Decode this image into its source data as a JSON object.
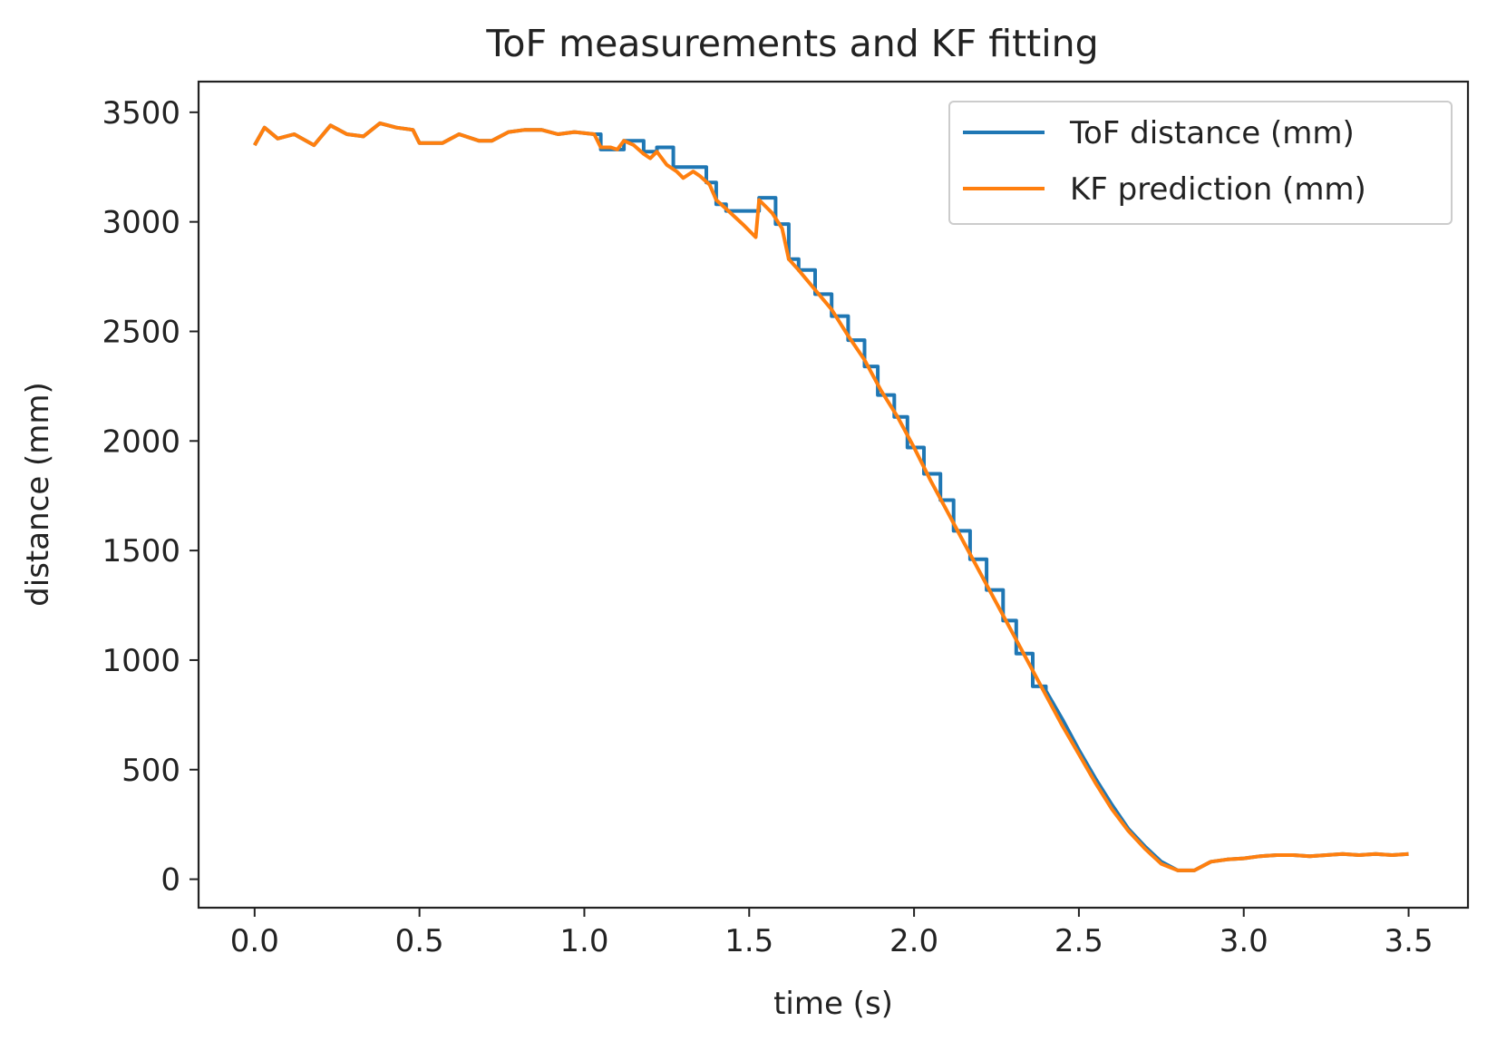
{
  "chart_data": {
    "type": "line",
    "title": "ToF measurements and KF fitting",
    "xlabel": "time (s)",
    "ylabel": "distance (mm)",
    "xlim": [
      -0.17,
      3.68
    ],
    "ylim": [
      -130,
      3640
    ],
    "xticks": [
      0.0,
      0.5,
      1.0,
      1.5,
      2.0,
      2.5,
      3.0,
      3.5
    ],
    "xtick_labels": [
      "0.0",
      "0.5",
      "1.0",
      "1.5",
      "2.0",
      "2.5",
      "3.0",
      "3.5"
    ],
    "yticks": [
      0,
      500,
      1000,
      1500,
      2000,
      2500,
      3000,
      3500
    ],
    "ytick_labels": [
      "0",
      "500",
      "1000",
      "1500",
      "2000",
      "2500",
      "3000",
      "3500"
    ],
    "grid": false,
    "legend_position": "top-right",
    "series": [
      {
        "name": "ToF distance (mm)",
        "color": "#1f77b4",
        "x": [
          0.0,
          0.03,
          0.07,
          0.12,
          0.18,
          0.23,
          0.28,
          0.33,
          0.38,
          0.43,
          0.48,
          0.5,
          0.53,
          0.57,
          0.62,
          0.68,
          0.72,
          0.77,
          0.82,
          0.87,
          0.92,
          0.97,
          1.03,
          1.05,
          1.05,
          1.08,
          1.1,
          1.12,
          1.12,
          1.18,
          1.18,
          1.22,
          1.22,
          1.27,
          1.27,
          1.37,
          1.37,
          1.4,
          1.4,
          1.43,
          1.43,
          1.48,
          1.48,
          1.53,
          1.53,
          1.58,
          1.58,
          1.62,
          1.62,
          1.65,
          1.65,
          1.7,
          1.7,
          1.75,
          1.75,
          1.8,
          1.8,
          1.85,
          1.85,
          1.89,
          1.89,
          1.94,
          1.94,
          1.98,
          1.98,
          2.03,
          2.03,
          2.08,
          2.08,
          2.12,
          2.12,
          2.17,
          2.17,
          2.22,
          2.22,
          2.27,
          2.27,
          2.31,
          2.31,
          2.36,
          2.36,
          2.4,
          2.4,
          2.45,
          2.5,
          2.55,
          2.6,
          2.65,
          2.7,
          2.75,
          2.8,
          2.85,
          2.9,
          2.95,
          3.0,
          3.05,
          3.1,
          3.15,
          3.2,
          3.25,
          3.3,
          3.35,
          3.4,
          3.45,
          3.5
        ],
        "y": [
          3350,
          3430,
          3380,
          3400,
          3350,
          3440,
          3400,
          3390,
          3450,
          3430,
          3420,
          3360,
          3360,
          3360,
          3400,
          3370,
          3370,
          3410,
          3420,
          3420,
          3400,
          3410,
          3400,
          3400,
          3330,
          3330,
          3330,
          3330,
          3370,
          3370,
          3320,
          3320,
          3340,
          3340,
          3250,
          3250,
          3180,
          3180,
          3080,
          3080,
          3050,
          3050,
          3050,
          3050,
          3110,
          3110,
          2990,
          2990,
          2830,
          2830,
          2780,
          2780,
          2670,
          2670,
          2570,
          2570,
          2460,
          2460,
          2340,
          2340,
          2210,
          2210,
          2110,
          2110,
          1970,
          1970,
          1850,
          1850,
          1730,
          1730,
          1590,
          1590,
          1460,
          1460,
          1320,
          1320,
          1180,
          1180,
          1030,
          1030,
          880,
          880,
          860,
          730,
          590,
          460,
          340,
          230,
          150,
          80,
          40,
          40,
          80,
          90,
          95,
          105,
          110,
          110,
          105,
          110,
          115,
          110,
          115,
          110,
          115
        ]
      },
      {
        "name": "KF prediction (mm)",
        "color": "#ff7f0e",
        "x": [
          0.0,
          0.03,
          0.07,
          0.12,
          0.18,
          0.23,
          0.28,
          0.33,
          0.38,
          0.43,
          0.48,
          0.5,
          0.53,
          0.57,
          0.62,
          0.68,
          0.72,
          0.77,
          0.82,
          0.87,
          0.92,
          0.97,
          1.03,
          1.05,
          1.08,
          1.1,
          1.12,
          1.15,
          1.18,
          1.2,
          1.22,
          1.25,
          1.28,
          1.3,
          1.33,
          1.35,
          1.38,
          1.4,
          1.43,
          1.48,
          1.52,
          1.53,
          1.57,
          1.6,
          1.62,
          1.65,
          1.7,
          1.75,
          1.8,
          1.85,
          1.9,
          1.95,
          2.0,
          2.05,
          2.1,
          2.15,
          2.2,
          2.25,
          2.3,
          2.35,
          2.4,
          2.45,
          2.5,
          2.55,
          2.6,
          2.65,
          2.7,
          2.75,
          2.8,
          2.85,
          2.9,
          2.95,
          3.0,
          3.05,
          3.1,
          3.15,
          3.2,
          3.25,
          3.3,
          3.35,
          3.4,
          3.45,
          3.5
        ],
        "y": [
          3350,
          3430,
          3380,
          3400,
          3350,
          3440,
          3400,
          3390,
          3450,
          3430,
          3420,
          3360,
          3360,
          3360,
          3400,
          3370,
          3370,
          3410,
          3420,
          3420,
          3400,
          3410,
          3400,
          3340,
          3340,
          3330,
          3370,
          3350,
          3310,
          3290,
          3320,
          3260,
          3230,
          3200,
          3230,
          3210,
          3170,
          3100,
          3060,
          2990,
          2930,
          3100,
          3040,
          2970,
          2830,
          2780,
          2690,
          2600,
          2480,
          2370,
          2230,
          2110,
          1970,
          1820,
          1680,
          1540,
          1400,
          1260,
          1120,
          980,
          840,
          700,
          570,
          440,
          320,
          220,
          140,
          70,
          40,
          40,
          80,
          90,
          95,
          105,
          110,
          110,
          105,
          110,
          115,
          110,
          115,
          110,
          115
        ]
      }
    ]
  }
}
